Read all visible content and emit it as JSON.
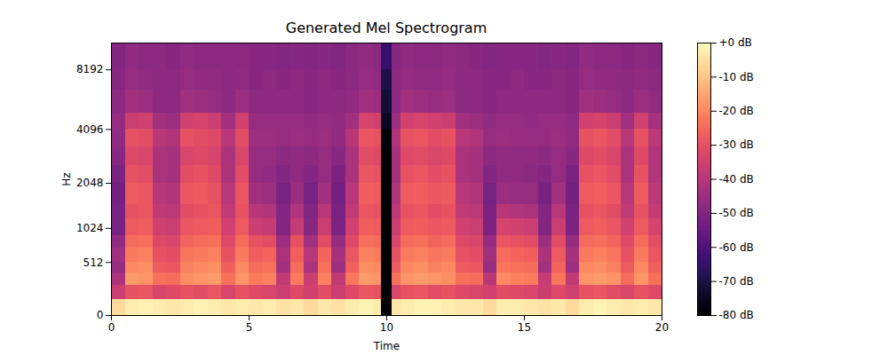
{
  "chart_data": {
    "type": "heatmap",
    "title": "Generated Mel Spectrogram",
    "x_label": "Time",
    "y_label": "Hz",
    "xlim": [
      0,
      20
    ],
    "xticks": [
      0,
      5,
      10,
      15,
      20
    ],
    "ylim": [
      0,
      11025
    ],
    "yticks": [
      0,
      512,
      1024,
      2048,
      4096,
      8192
    ],
    "color": "magma",
    "x_edges": [
      0,
      0.5,
      1,
      1.5,
      2,
      2.5,
      3,
      3.5,
      4,
      4.5,
      5,
      5.5,
      6,
      6.5,
      7,
      7.5,
      8,
      8.5,
      9,
      9.5,
      9.8,
      10.2,
      10.5,
      11,
      11.5,
      12,
      12.5,
      13,
      13.5,
      14,
      14.5,
      15,
      15.5,
      16,
      16.5,
      17,
      17.5,
      18,
      18.5,
      19,
      19.5,
      20
    ],
    "y_edges": [
      0,
      128,
      256,
      384,
      512,
      700,
      900,
      1200,
      1500,
      2048,
      2600,
      3300,
      4096,
      5000,
      6500,
      8192,
      11025
    ],
    "cells": [
      [
        -6,
        -3,
        -2,
        -3,
        -4,
        -3,
        -2,
        -3,
        -4,
        -3,
        -4,
        -3,
        -5,
        -4,
        -6,
        -4,
        -5,
        -3,
        -2,
        -3,
        -80,
        -4,
        -3,
        -2,
        -2,
        -3,
        -4,
        -4,
        -6,
        -3,
        -3,
        -4,
        -5,
        -4,
        -6,
        -3,
        -2,
        -3,
        -4,
        -3,
        -4
      ],
      [
        -36,
        -30,
        -29,
        -33,
        -32,
        -30,
        -31,
        -29,
        -33,
        -30,
        -32,
        -33,
        -36,
        -32,
        -35,
        -31,
        -36,
        -32,
        -29,
        -30,
        -80,
        -33,
        -30,
        -29,
        -31,
        -30,
        -32,
        -33,
        -35,
        -31,
        -32,
        -33,
        -36,
        -32,
        -35,
        -30,
        -29,
        -31,
        -33,
        -30,
        -32
      ],
      [
        -42,
        -17,
        -18,
        -24,
        -25,
        -19,
        -18,
        -17,
        -24,
        -18,
        -22,
        -21,
        -38,
        -22,
        -36,
        -21,
        -38,
        -23,
        -17,
        -18,
        -80,
        -24,
        -18,
        -17,
        -18,
        -19,
        -24,
        -25,
        -40,
        -20,
        -21,
        -22,
        -37,
        -23,
        -38,
        -18,
        -17,
        -18,
        -25,
        -18,
        -24
      ],
      [
        -46,
        -20,
        -19,
        -28,
        -29,
        -21,
        -20,
        -19,
        -27,
        -20,
        -25,
        -24,
        -44,
        -25,
        -42,
        -24,
        -45,
        -27,
        -19,
        -20,
        -80,
        -28,
        -20,
        -19,
        -21,
        -20,
        -28,
        -29,
        -46,
        -23,
        -24,
        -25,
        -44,
        -26,
        -45,
        -20,
        -19,
        -21,
        -28,
        -20,
        -27
      ],
      [
        -44,
        -22,
        -21,
        -30,
        -31,
        -23,
        -22,
        -21,
        -30,
        -22,
        -27,
        -26,
        -42,
        -27,
        -40,
        -26,
        -43,
        -29,
        -21,
        -22,
        -80,
        -30,
        -22,
        -21,
        -23,
        -22,
        -30,
        -31,
        -44,
        -25,
        -26,
        -27,
        -42,
        -28,
        -43,
        -22,
        -21,
        -23,
        -30,
        -22,
        -29
      ],
      [
        -47,
        -25,
        -24,
        -32,
        -33,
        -26,
        -25,
        -24,
        -32,
        -25,
        -30,
        -31,
        -45,
        -30,
        -44,
        -31,
        -46,
        -32,
        -24,
        -25,
        -80,
        -33,
        -25,
        -24,
        -26,
        -25,
        -32,
        -33,
        -46,
        -29,
        -30,
        -31,
        -45,
        -31,
        -46,
        -25,
        -24,
        -26,
        -32,
        -25,
        -31
      ],
      [
        -52,
        -28,
        -27,
        -35,
        -36,
        -29,
        -28,
        -27,
        -35,
        -28,
        -36,
        -37,
        -50,
        -37,
        -49,
        -36,
        -51,
        -35,
        -27,
        -28,
        -80,
        -36,
        -28,
        -27,
        -29,
        -28,
        -35,
        -36,
        -51,
        -34,
        -35,
        -36,
        -50,
        -36,
        -51,
        -28,
        -27,
        -29,
        -35,
        -28,
        -34
      ],
      [
        -52,
        -30,
        -29,
        -38,
        -39,
        -31,
        -30,
        -29,
        -38,
        -30,
        -40,
        -41,
        -50,
        -41,
        -50,
        -40,
        -52,
        -38,
        -29,
        -30,
        -80,
        -39,
        -30,
        -29,
        -31,
        -30,
        -38,
        -39,
        -51,
        -40,
        -41,
        -42,
        -50,
        -40,
        -51,
        -30,
        -29,
        -31,
        -38,
        -30,
        -37
      ],
      [
        -53,
        -28,
        -29,
        -40,
        -41,
        -29,
        -28,
        -30,
        -40,
        -29,
        -44,
        -45,
        -52,
        -45,
        -52,
        -44,
        -53,
        -40,
        -27,
        -28,
        -80,
        -41,
        -28,
        -27,
        -29,
        -28,
        -40,
        -41,
        -52,
        -45,
        -46,
        -46,
        -52,
        -44,
        -53,
        -28,
        -27,
        -29,
        -40,
        -28,
        -39
      ],
      [
        -51,
        -30,
        -31,
        -42,
        -43,
        -31,
        -30,
        -32,
        -42,
        -31,
        -46,
        -47,
        -50,
        -47,
        -50,
        -46,
        -51,
        -42,
        -29,
        -30,
        -80,
        -43,
        -30,
        -29,
        -31,
        -30,
        -42,
        -43,
        -50,
        -47,
        -47,
        -48,
        -50,
        -46,
        -51,
        -30,
        -29,
        -31,
        -42,
        -30,
        -41
      ],
      [
        -49,
        -32,
        -33,
        -42,
        -43,
        -33,
        -32,
        -34,
        -42,
        -33,
        -46,
        -46,
        -48,
        -47,
        -48,
        -46,
        -49,
        -42,
        -31,
        -32,
        -80,
        -43,
        -32,
        -31,
        -33,
        -32,
        -42,
        -43,
        -48,
        -47,
        -47,
        -47,
        -48,
        -46,
        -49,
        -32,
        -31,
        -33,
        -42,
        -32,
        -41
      ],
      [
        -47,
        -30,
        -31,
        -40,
        -41,
        -30,
        -31,
        -32,
        -40,
        -31,
        -45,
        -45,
        -46,
        -45,
        -46,
        -45,
        -47,
        -40,
        -29,
        -30,
        -78,
        -41,
        -30,
        -29,
        -31,
        -30,
        -40,
        -41,
        -46,
        -45,
        -46,
        -46,
        -46,
        -45,
        -47,
        -30,
        -29,
        -31,
        -40,
        -30,
        -39
      ],
      [
        -46,
        -36,
        -35,
        -44,
        -45,
        -35,
        -34,
        -36,
        -44,
        -35,
        -46,
        -46,
        -46,
        -46,
        -47,
        -46,
        -47,
        -44,
        -34,
        -35,
        -75,
        -45,
        -35,
        -34,
        -35,
        -36,
        -44,
        -45,
        -47,
        -46,
        -46,
        -47,
        -46,
        -46,
        -47,
        -35,
        -34,
        -36,
        -44,
        -35,
        -43
      ],
      [
        -48,
        -44,
        -45,
        -48,
        -48,
        -44,
        -45,
        -46,
        -48,
        -45,
        -48,
        -48,
        -48,
        -48,
        -49,
        -48,
        -48,
        -47,
        -44,
        -45,
        -72,
        -48,
        -44,
        -45,
        -46,
        -45,
        -48,
        -48,
        -49,
        -48,
        -48,
        -48,
        -48,
        -48,
        -49,
        -44,
        -45,
        -46,
        -48,
        -45,
        -47
      ],
      [
        -49,
        -46,
        -47,
        -48,
        -48,
        -46,
        -47,
        -47,
        -48,
        -47,
        -49,
        -48,
        -49,
        -48,
        -49,
        -48,
        -49,
        -48,
        -46,
        -47,
        -70,
        -48,
        -46,
        -47,
        -47,
        -46,
        -48,
        -48,
        -49,
        -49,
        -48,
        -49,
        -49,
        -48,
        -49,
        -46,
        -47,
        -47,
        -48,
        -47,
        -48
      ],
      [
        -50,
        -47,
        -48,
        -48,
        -49,
        -47,
        -48,
        -48,
        -48,
        -48,
        -49,
        -49,
        -50,
        -49,
        -50,
        -49,
        -50,
        -48,
        -47,
        -48,
        -65,
        -49,
        -47,
        -48,
        -48,
        -47,
        -48,
        -49,
        -50,
        -49,
        -49,
        -49,
        -50,
        -49,
        -50,
        -47,
        -48,
        -48,
        -49,
        -48,
        -49
      ]
    ],
    "colorbar": {
      "range": [
        -80,
        0
      ],
      "ticks": [
        {
          "value": 0,
          "label": "+0 dB"
        },
        {
          "value": -10,
          "label": "-10 dB"
        },
        {
          "value": -20,
          "label": "-20 dB"
        },
        {
          "value": -30,
          "label": "-30 dB"
        },
        {
          "value": -40,
          "label": "-40 dB"
        },
        {
          "value": -50,
          "label": "-50 dB"
        },
        {
          "value": -60,
          "label": "-60 dB"
        },
        {
          "value": -70,
          "label": "-70 dB"
        },
        {
          "value": -80,
          "label": "-80 dB"
        }
      ]
    }
  }
}
